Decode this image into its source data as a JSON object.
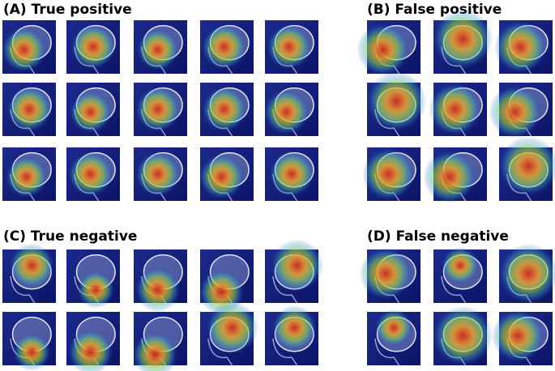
{
  "panels": [
    {
      "label": "(A) True positive"
    },
    {
      "label": "(B) False positive"
    },
    {
      "label": "(C) True negative"
    },
    {
      "label": "(D) False negative"
    }
  ]
}
